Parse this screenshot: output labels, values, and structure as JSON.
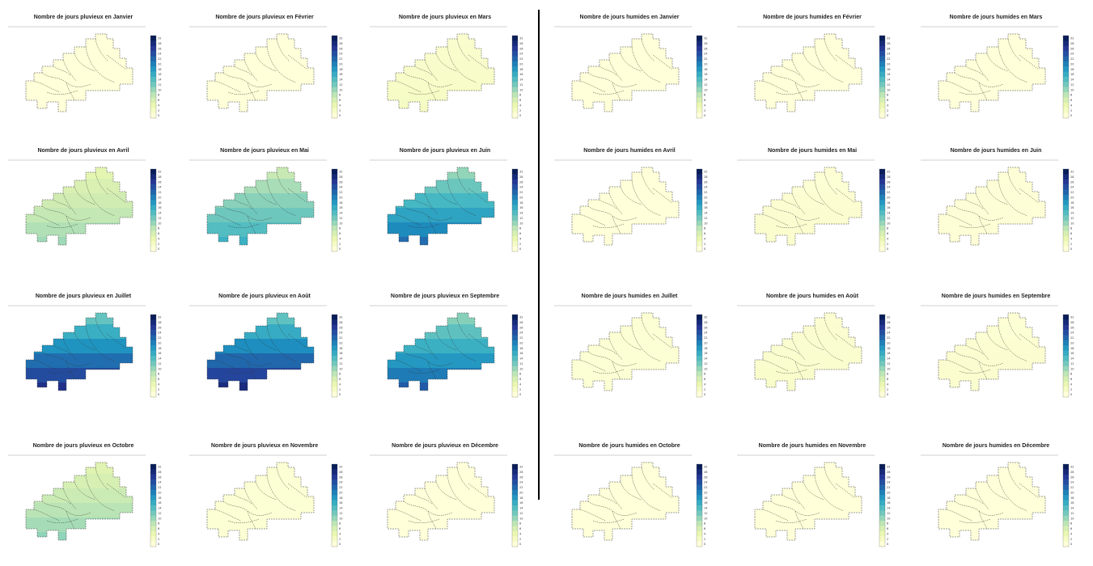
{
  "left_group": {
    "panels": [
      {
        "title": "Nombre de jours pluvieux en Janvier",
        "level": 0.0
      },
      {
        "title": "Nombre de jours pluvieux en Février",
        "level": 0.0
      },
      {
        "title": "Nombre de jours pluvieux en Mars",
        "level": 0.06
      },
      {
        "title": "Nombre de jours pluvieux en Avril",
        "level": 0.28
      },
      {
        "title": "Nombre de jours pluvieux en Mai",
        "level": 0.45
      },
      {
        "title": "Nombre de jours pluvieux en Juin",
        "level": 0.62
      },
      {
        "title": "Nombre de jours pluvieux en Juillet",
        "level": 0.78
      },
      {
        "title": "Nombre de jours pluvieux en Août",
        "level": 0.8
      },
      {
        "title": "Nombre de jours pluvieux en Septembre",
        "level": 0.66
      },
      {
        "title": "Nombre de jours pluvieux en Octobre",
        "level": 0.3
      },
      {
        "title": "Nombre de jours pluvieux en Novembre",
        "level": 0.02
      },
      {
        "title": "Nombre de jours pluvieux en Décembre",
        "level": 0.0
      }
    ]
  },
  "right_group": {
    "panels": [
      {
        "title": "Nombre de jours humides en Janvier",
        "level": 0.0
      },
      {
        "title": "Nombre de jours humides en Février",
        "level": 0.0
      },
      {
        "title": "Nombre de jours humides en Mars",
        "level": 0.0
      },
      {
        "title": "Nombre de jours humides en Avril",
        "level": 0.0
      },
      {
        "title": "Nombre de jours humides en Mai",
        "level": 0.03
      },
      {
        "title": "Nombre de jours humides en Juin",
        "level": 0.01
      },
      {
        "title": "Nombre de jours humides en Juillet",
        "level": 0.02
      },
      {
        "title": "Nombre de jours humides en Août",
        "level": 0.04
      },
      {
        "title": "Nombre de jours humides en Septembre",
        "level": 0.03
      },
      {
        "title": "Nombre de jours humides en Octobre",
        "level": 0.0
      },
      {
        "title": "Nombre de jours humides en Novembre",
        "level": 0.0
      },
      {
        "title": "Nombre de jours humides en Décembre",
        "level": 0.0
      }
    ]
  },
  "colorbar_ticks": [
    "32",
    "28",
    "26",
    "24",
    "22",
    "20",
    "18",
    "16",
    "14",
    "12",
    "10",
    "8",
    "6",
    "4",
    "2",
    "0"
  ],
  "palette": [
    "#ffffd9",
    "#edf8b1",
    "#c7e9b4",
    "#7fcdbb",
    "#41b6c4",
    "#1d91c0",
    "#225ea8",
    "#253494",
    "#081d58"
  ]
}
